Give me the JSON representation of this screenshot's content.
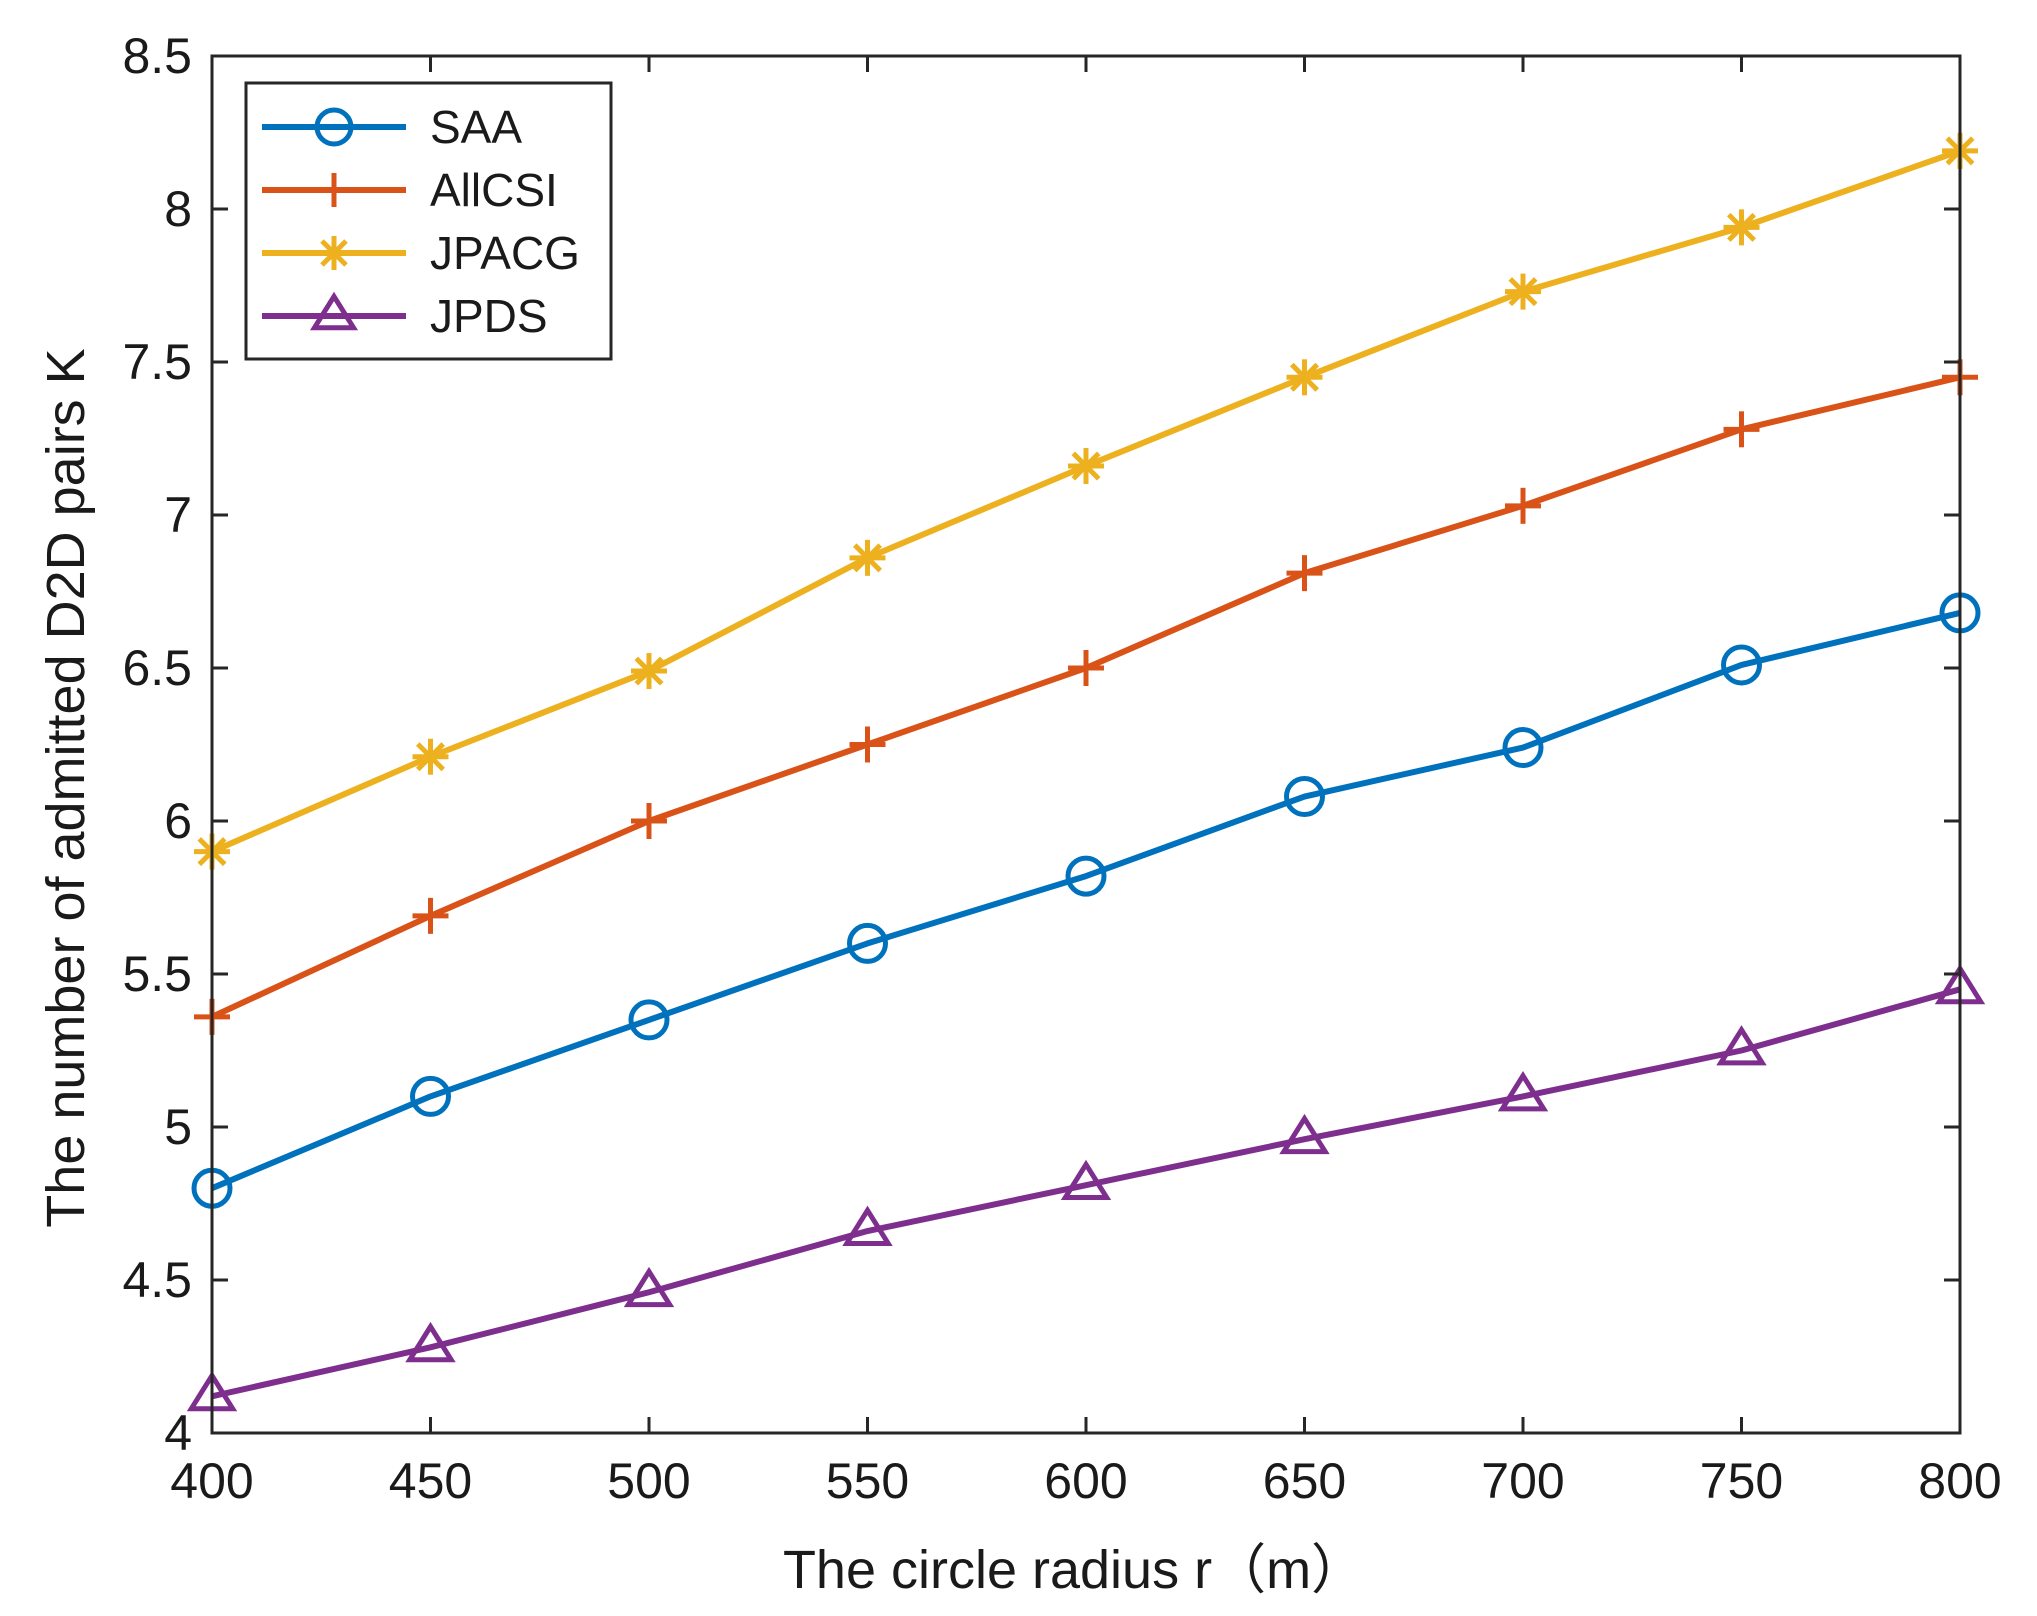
{
  "chart_data": {
    "type": "line",
    "title": "",
    "xlabel": "The circle radius r（m）",
    "ylabel": "The number of admitted D2D pairs K",
    "x": [
      400,
      450,
      500,
      550,
      600,
      650,
      700,
      750,
      800
    ],
    "xlim": [
      400,
      800
    ],
    "ylim": [
      4,
      8.5
    ],
    "xticks": [
      400,
      450,
      500,
      550,
      600,
      650,
      700,
      750,
      800
    ],
    "yticks": [
      4,
      4.5,
      5,
      5.5,
      6,
      6.5,
      7,
      7.5,
      8,
      8.5
    ],
    "xtick_labels": [
      "400",
      "450",
      "500",
      "550",
      "600",
      "650",
      "700",
      "750",
      "800"
    ],
    "ytick_labels": [
      "4",
      "4.5",
      "5",
      "5.5",
      "6",
      "6.5",
      "7",
      "7.5",
      "8",
      "8.5"
    ],
    "grid": false,
    "legend_position": "top-left",
    "series": [
      {
        "name": "SAA",
        "color": "#0072BD",
        "marker": "circle",
        "values": [
          4.8,
          5.1,
          5.35,
          5.6,
          5.82,
          6.08,
          6.24,
          6.51,
          6.68
        ]
      },
      {
        "name": "AllCSI",
        "color": "#D95319",
        "marker": "plus",
        "values": [
          5.36,
          5.69,
          6.0,
          6.25,
          6.5,
          6.81,
          7.03,
          7.28,
          7.45
        ]
      },
      {
        "name": "JPACG",
        "color": "#EDB120",
        "marker": "asterisk",
        "values": [
          5.9,
          6.21,
          6.49,
          6.86,
          7.16,
          7.45,
          7.73,
          7.94,
          8.19
        ]
      },
      {
        "name": "JPDS",
        "color": "#7E2F8E",
        "marker": "triangle",
        "values": [
          4.12,
          4.28,
          4.46,
          4.66,
          4.81,
          4.96,
          5.1,
          5.25,
          5.45
        ]
      }
    ]
  }
}
